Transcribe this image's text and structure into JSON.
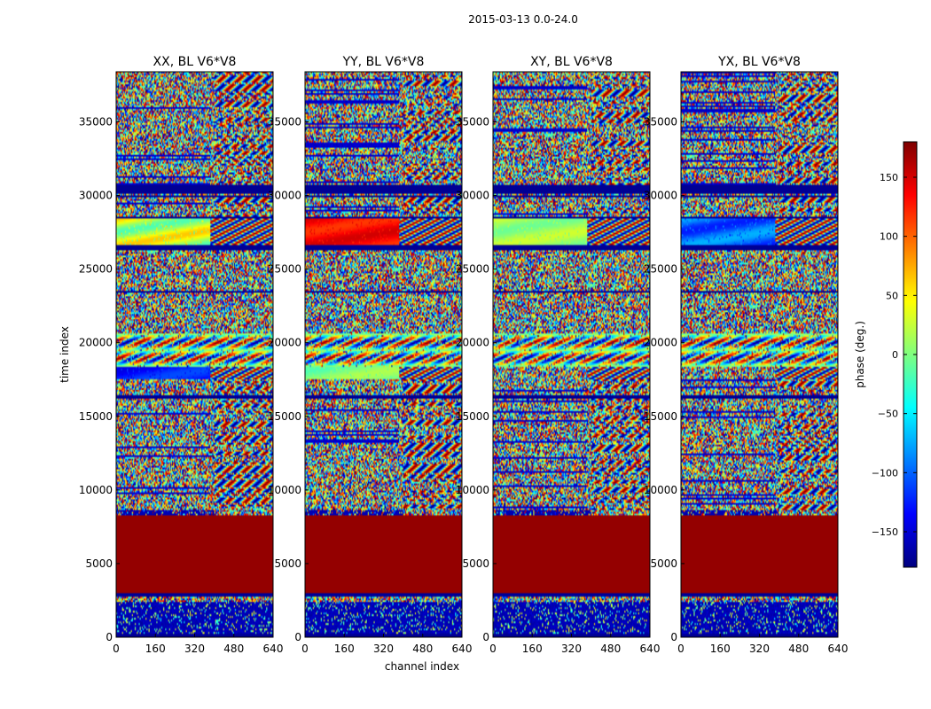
{
  "chart_data": {
    "type": "heatmap",
    "suptitle": "2015-03-13 0.0-24.0",
    "xlabel": "channel index",
    "ylabel": "time index",
    "x_range": [
      0,
      640
    ],
    "y_range": [
      0,
      38400
    ],
    "x_ticks": [
      0,
      160,
      320,
      480,
      640
    ],
    "y_ticks": [
      0,
      5000,
      10000,
      15000,
      20000,
      25000,
      30000,
      35000
    ],
    "colormap": "jet",
    "panels": [
      {
        "title": "XX, BL V6*V8",
        "band_2700_2850": "cyan-yellow",
        "band_1750_1850": "blue"
      },
      {
        "title": "YY, BL V6*V8",
        "band_2700_2850": "red-yellow",
        "band_1750_1850": "cyan-green"
      },
      {
        "title": "XY, BL V6*V8",
        "band_2700_2850": "green-noisy",
        "band_1750_1850": "noisy"
      },
      {
        "title": "YX, BL V6*V8",
        "band_2700_2850": "blue-noisy",
        "band_1750_1850": "noisy"
      }
    ],
    "colorbar": {
      "label": "phase (deg.)",
      "range": [
        -180,
        180
      ],
      "ticks": [
        -150,
        -100,
        -50,
        0,
        50,
        100,
        150
      ],
      "colors": [
        "#00007f",
        "#0000ff",
        "#007fff",
        "#00ffff",
        "#7fff7f",
        "#ffff00",
        "#ff7f00",
        "#ff0000",
        "#7f0000"
      ]
    },
    "row_segments": [
      {
        "from": 0,
        "to": 180,
        "pattern": "solid-low"
      },
      {
        "from": 180,
        "to": 280,
        "pattern": "lines"
      },
      {
        "from": 280,
        "to": 2450,
        "pattern": "low-striped"
      },
      {
        "from": 2450,
        "to": 2800,
        "pattern": "noise"
      },
      {
        "from": 2800,
        "to": 2950,
        "pattern": "solid-low"
      },
      {
        "from": 2950,
        "to": 8300,
        "pattern": "solid-high"
      },
      {
        "from": 8300,
        "to": 8600,
        "pattern": "low-noisy"
      },
      {
        "from": 8600,
        "to": 16200,
        "pattern": "noise-fringe"
      },
      {
        "from": 16200,
        "to": 16500,
        "pattern": "solid-low"
      },
      {
        "from": 16500,
        "to": 17500,
        "pattern": "noise-fringe"
      },
      {
        "from": 17500,
        "to": 18400,
        "pattern": "band-b"
      },
      {
        "from": 18400,
        "to": 20600,
        "pattern": "fringes"
      },
      {
        "from": 20600,
        "to": 23400,
        "pattern": "noise"
      },
      {
        "from": 23400,
        "to": 23600,
        "pattern": "lines"
      },
      {
        "from": 23600,
        "to": 26300,
        "pattern": "noise"
      },
      {
        "from": 26300,
        "to": 26600,
        "pattern": "solid-low"
      },
      {
        "from": 26600,
        "to": 28400,
        "pattern": "band-a"
      },
      {
        "from": 28400,
        "to": 28600,
        "pattern": "solid-low"
      },
      {
        "from": 28600,
        "to": 29900,
        "pattern": "noise-fringe"
      },
      {
        "from": 29900,
        "to": 30100,
        "pattern": "lines"
      },
      {
        "from": 30100,
        "to": 30700,
        "pattern": "solid-low"
      },
      {
        "from": 30700,
        "to": 38400,
        "pattern": "noise-fringe"
      }
    ]
  }
}
